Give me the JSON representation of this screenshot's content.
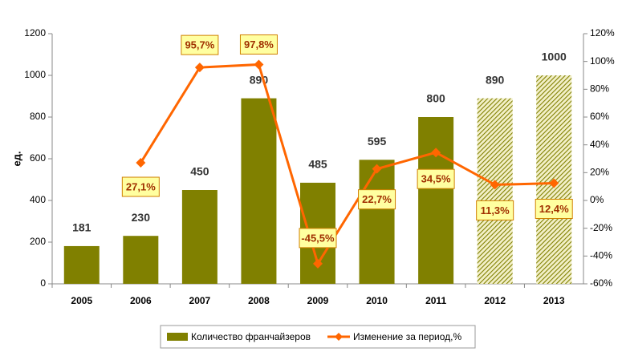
{
  "chart_data": {
    "type": "bar-line",
    "categories": [
      "2005",
      "2006",
      "2007",
      "2008",
      "2009",
      "2010",
      "2011",
      "2012",
      "2013"
    ],
    "ylabel": "ед.",
    "ylim": [
      0,
      1200
    ],
    "yticks": [
      0,
      200,
      400,
      600,
      800,
      1000,
      1200
    ],
    "y2lim": [
      -60,
      120
    ],
    "y2ticks": [
      {
        "value": -60,
        "label": "-60%"
      },
      {
        "value": -40,
        "label": "-40%"
      },
      {
        "value": -20,
        "label": "-20%"
      },
      {
        "value": 0,
        "label": "0%"
      },
      {
        "value": 20,
        "label": "20%"
      },
      {
        "value": 40,
        "label": "40%"
      },
      {
        "value": 60,
        "label": "60%"
      },
      {
        "value": 80,
        "label": "80%"
      },
      {
        "value": 100,
        "label": "100%"
      },
      {
        "value": 120,
        "label": "120%"
      }
    ],
    "series": [
      {
        "name": "Количество франчайзеров",
        "type": "bar",
        "color": "#808000",
        "patterns": [
          "solid",
          "solid",
          "solid",
          "solid",
          "solid",
          "solid",
          "solid",
          "hatched",
          "hatched"
        ],
        "values": [
          181,
          230,
          450,
          890,
          485,
          595,
          800,
          890,
          1000
        ]
      },
      {
        "name": "Изменение за период,%",
        "type": "line",
        "axis": "y2",
        "color": "#ff6600",
        "values": [
          null,
          27.1,
          95.7,
          97.8,
          -45.5,
          22.7,
          34.5,
          11.3,
          12.4
        ],
        "value_labels": [
          null,
          "27,1%",
          "95,7%",
          "97,8%",
          "-45,5%",
          "22,7%",
          "34,5%",
          "11,3%",
          "12,4%"
        ]
      }
    ]
  }
}
